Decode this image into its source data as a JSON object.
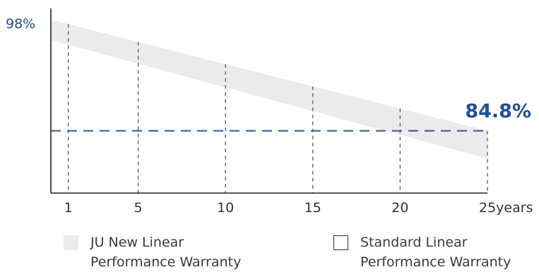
{
  "chart_data": {
    "type": "area",
    "x_ticks": [
      "1",
      "5",
      "10",
      "15",
      "20",
      "25years"
    ],
    "x_values": [
      1,
      5,
      10,
      15,
      20,
      25
    ],
    "xlim": [
      0,
      25
    ],
    "ylim": [
      77.4,
      98
    ],
    "y_tick_label": "98%",
    "y_tick_value": 98,
    "series": [
      {
        "name": "JU New Linear Performance Warranty",
        "band_x": [
          0,
          25
        ],
        "band_upper": [
          98,
          84.8
        ],
        "band_lower": [
          95.6,
          81.5
        ]
      }
    ],
    "reference_line": {
      "value": 84.8,
      "label": "84.8%"
    },
    "vertical_gridlines": "dashed at each x tick",
    "legend_position": "bottom"
  },
  "legend": {
    "items": [
      {
        "label_line1": "JU New Linear",
        "label_line2": "Performance Warranty"
      },
      {
        "label_line1": "Standard Linear",
        "label_line2": "Performance Warranty"
      }
    ]
  },
  "colors": {
    "band": "#ebebeb",
    "accent": "#2b55a0",
    "axis": "#222222",
    "grid": "#555555",
    "label": "#1f4f99"
  }
}
